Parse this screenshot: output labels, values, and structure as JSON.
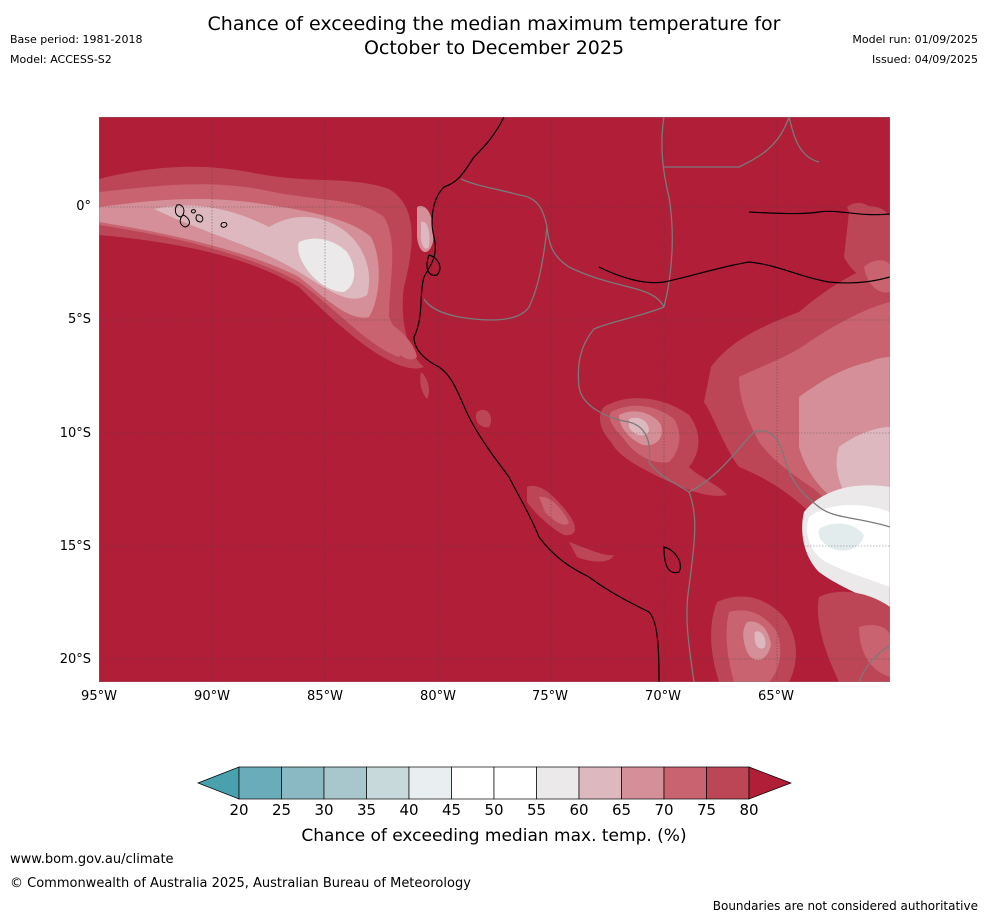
{
  "title_line1": "Chance of exceeding the median maximum temperature for",
  "title_line2": "October to December 2025",
  "base_period": "Base period: 1981-2018",
  "model": "Model: ACCESS-S2",
  "model_run": "Model run: 01/09/2025",
  "issued": "Issued: 04/09/2025",
  "lat_labels": [
    "0°",
    "5°S",
    "10°S",
    "15°S",
    "20°S"
  ],
  "lon_labels": [
    "95°W",
    "90°W",
    "85°W",
    "80°W",
    "75°W",
    "70°W",
    "65°W"
  ],
  "colorbar": {
    "title": "Chance of exceeding median max. temp. (%)",
    "ticks": [
      "20",
      "25",
      "30",
      "35",
      "40",
      "45",
      "50",
      "55",
      "60",
      "65",
      "70",
      "75",
      "80"
    ],
    "colors": [
      "#6aacb9",
      "#8ab8c3",
      "#a8c7cc",
      "#c8d9db",
      "#e9eef0",
      "#ffffff",
      "#ffffff",
      "#ebe9ea",
      "#ddb9bf",
      "#d48f98",
      "#c8636f",
      "#bd4656"
    ],
    "low_color": "#4aa1ae",
    "high_color": "#b01e38"
  },
  "map_colors": {
    "base": "#b01e38",
    "c75": "#bd4656",
    "c70": "#c8636f",
    "c65": "#d48f98",
    "c60": "#ddb9bf",
    "c55": "#ebe9ea",
    "c50": "#ffffff",
    "c45": "#e3eced"
  },
  "footer": {
    "url": "www.bom.gov.au/climate",
    "copyright": "© Commonwealth of Australia 2025, Australian Bureau of Meteorology",
    "disclaimer": "Boundaries are not considered authoritative"
  }
}
